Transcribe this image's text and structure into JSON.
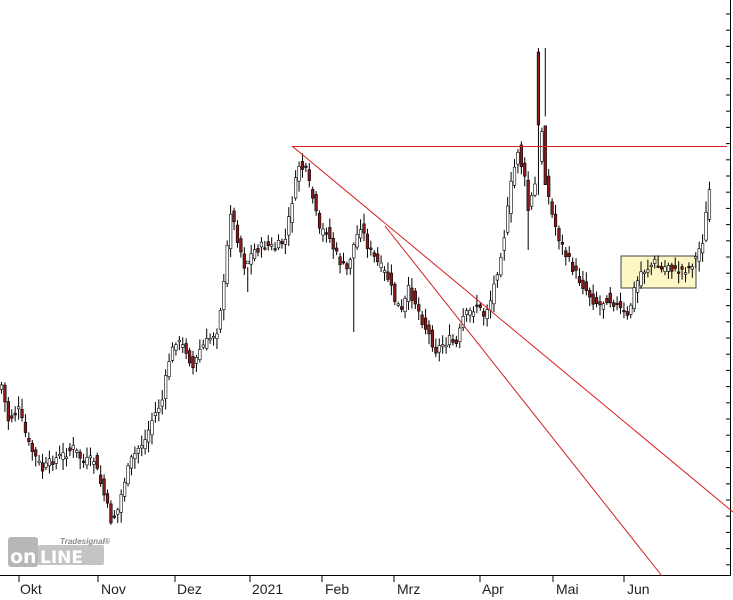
{
  "chart_data": {
    "type": "candlestick",
    "title": "",
    "xlabel": "",
    "ylabel": "",
    "x_tick_labels": [
      "Okt",
      "Nov",
      "Dez",
      "2021",
      "Feb",
      "Mrz",
      "Apr",
      "Mai",
      "Jun"
    ],
    "y_axis_labels_visible": false,
    "grid": false,
    "candle_colors": {
      "up": "#ffffff",
      "down": "#8b1a1a",
      "outline": "#000000",
      "wick": "#000000"
    },
    "trendline_color": "#d42020",
    "box_fill": "#fbf6c3",
    "box_stroke": "#444444",
    "anchors": [
      {
        "i": 0,
        "c": 385
      },
      {
        "i": 2,
        "c": 420
      },
      {
        "i": 5,
        "c": 410
      },
      {
        "i": 8,
        "c": 445
      },
      {
        "i": 12,
        "c": 470
      },
      {
        "i": 15,
        "c": 460
      },
      {
        "i": 18,
        "c": 455
      },
      {
        "i": 21,
        "c": 448
      },
      {
        "i": 24,
        "c": 462
      },
      {
        "i": 27,
        "c": 460
      },
      {
        "i": 30,
        "c": 495
      },
      {
        "i": 32,
        "c": 520
      },
      {
        "i": 34,
        "c": 510
      },
      {
        "i": 36,
        "c": 480
      },
      {
        "i": 38,
        "c": 460
      },
      {
        "i": 40,
        "c": 448
      },
      {
        "i": 42,
        "c": 440
      },
      {
        "i": 44,
        "c": 420
      },
      {
        "i": 47,
        "c": 400
      },
      {
        "i": 49,
        "c": 360
      },
      {
        "i": 51,
        "c": 340
      },
      {
        "i": 54,
        "c": 350
      },
      {
        "i": 56,
        "c": 368
      },
      {
        "i": 58,
        "c": 350
      },
      {
        "i": 60,
        "c": 342
      },
      {
        "i": 63,
        "c": 330
      },
      {
        "i": 65,
        "c": 285
      },
      {
        "i": 67,
        "c": 210
      },
      {
        "i": 69,
        "c": 238
      },
      {
        "i": 71,
        "c": 265
      },
      {
        "i": 74,
        "c": 250
      },
      {
        "i": 77,
        "c": 245
      },
      {
        "i": 80,
        "c": 248
      },
      {
        "i": 83,
        "c": 240
      },
      {
        "i": 85,
        "c": 200
      },
      {
        "i": 87,
        "c": 165
      },
      {
        "i": 89,
        "c": 172
      },
      {
        "i": 91,
        "c": 198
      },
      {
        "i": 93,
        "c": 232
      },
      {
        "i": 95,
        "c": 230
      },
      {
        "i": 97,
        "c": 248
      },
      {
        "i": 99,
        "c": 262
      },
      {
        "i": 101,
        "c": 270
      },
      {
        "i": 103,
        "c": 245
      },
      {
        "i": 105,
        "c": 225
      },
      {
        "i": 107,
        "c": 245
      },
      {
        "i": 109,
        "c": 258
      },
      {
        "i": 111,
        "c": 268
      },
      {
        "i": 113,
        "c": 278
      },
      {
        "i": 115,
        "c": 300
      },
      {
        "i": 117,
        "c": 312
      },
      {
        "i": 119,
        "c": 290
      },
      {
        "i": 121,
        "c": 302
      },
      {
        "i": 123,
        "c": 320
      },
      {
        "i": 125,
        "c": 335
      },
      {
        "i": 127,
        "c": 350
      },
      {
        "i": 129,
        "c": 344
      },
      {
        "i": 131,
        "c": 340
      },
      {
        "i": 133,
        "c": 345
      },
      {
        "i": 135,
        "c": 318
      },
      {
        "i": 137,
        "c": 312
      },
      {
        "i": 139,
        "c": 305
      },
      {
        "i": 141,
        "c": 315
      },
      {
        "i": 143,
        "c": 300
      },
      {
        "i": 145,
        "c": 270
      },
      {
        "i": 147,
        "c": 235
      },
      {
        "i": 149,
        "c": 185
      },
      {
        "i": 151,
        "c": 150
      },
      {
        "i": 153,
        "c": 180
      },
      {
        "i": 154,
        "c": 210
      },
      {
        "i": 156,
        "c": 185
      },
      {
        "i": 158,
        "c": 130
      },
      {
        "i": 159,
        "c": 180
      },
      {
        "i": 161,
        "c": 215
      },
      {
        "i": 163,
        "c": 238
      },
      {
        "i": 165,
        "c": 255
      },
      {
        "i": 167,
        "c": 268
      },
      {
        "i": 169,
        "c": 280
      },
      {
        "i": 171,
        "c": 290
      },
      {
        "i": 173,
        "c": 300
      },
      {
        "i": 175,
        "c": 305
      },
      {
        "i": 177,
        "c": 298
      },
      {
        "i": 179,
        "c": 302
      },
      {
        "i": 181,
        "c": 310
      },
      {
        "i": 183,
        "c": 318
      },
      {
        "i": 185,
        "c": 290
      },
      {
        "i": 187,
        "c": 272
      },
      {
        "i": 189,
        "c": 268
      },
      {
        "i": 191,
        "c": 262
      },
      {
        "i": 193,
        "c": 270
      },
      {
        "i": 195,
        "c": 264
      },
      {
        "i": 197,
        "c": 272
      },
      {
        "i": 199,
        "c": 270
      },
      {
        "i": 201,
        "c": 268
      },
      {
        "i": 203,
        "c": 258
      },
      {
        "i": 205,
        "c": 240
      },
      {
        "i": 207,
        "c": 190
      }
    ],
    "spikes": [
      {
        "i": 72,
        "hi": 292
      },
      {
        "i": 103,
        "lo": 332
      },
      {
        "i": 154,
        "lo": 250
      },
      {
        "i": 157,
        "hi": 48,
        "o": 52,
        "c": 125
      },
      {
        "i": 159,
        "lo": 48
      }
    ]
  },
  "watermark": {
    "brand": "Tradesignal",
    "mark": "®",
    "logo_left": "on",
    "logo_right": "LINE"
  }
}
